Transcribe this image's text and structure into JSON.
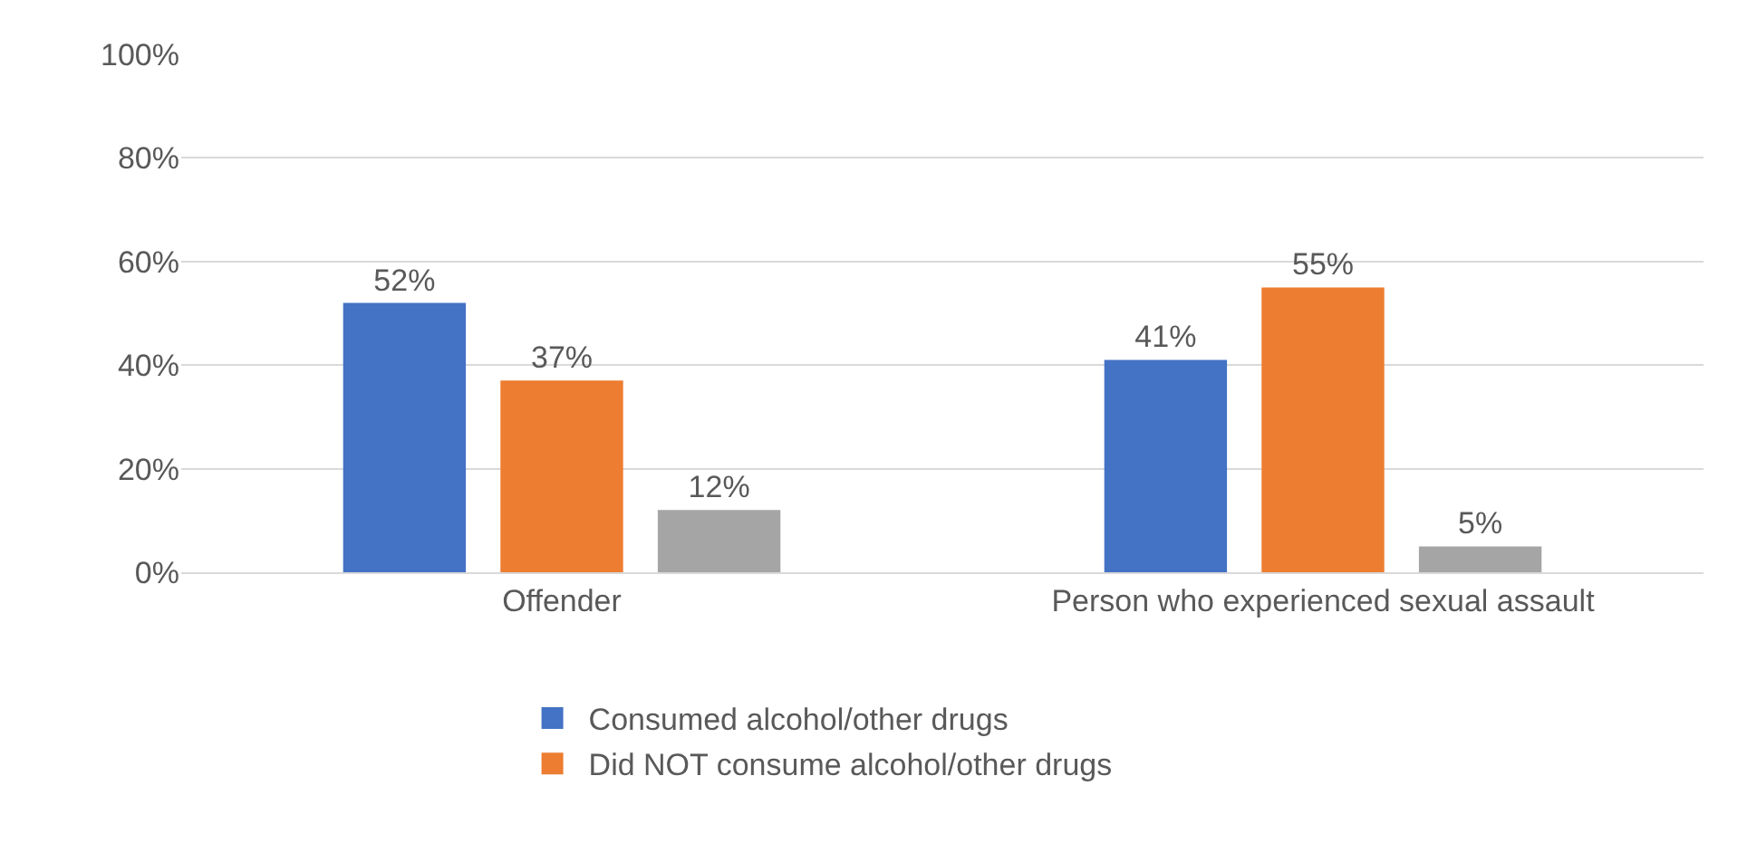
{
  "chart_data": {
    "type": "bar",
    "categories": [
      "Offender",
      "Person who experienced sexual assault"
    ],
    "series": [
      {
        "name": "Consumed alcohol/other drugs",
        "color": "#4472c4",
        "values": [
          52,
          41
        ],
        "value_labels": [
          "52%",
          "41%"
        ]
      },
      {
        "name": "Did NOT consume alcohol/other drugs",
        "color": "#ed7d31",
        "values": [
          37,
          55
        ],
        "value_labels": [
          "37%",
          "55%"
        ]
      },
      {
        "color": "#a5a5a5",
        "values": [
          12,
          5
        ],
        "value_labels": [
          "12%",
          "5%"
        ]
      }
    ],
    "ylim": [
      0,
      100
    ],
    "yticks": [
      {
        "value": 0,
        "label": "0%"
      },
      {
        "value": 20,
        "label": "20%"
      },
      {
        "value": 40,
        "label": "40%"
      },
      {
        "value": 60,
        "label": "60%"
      },
      {
        "value": 80,
        "label": "80%"
      },
      {
        "value": 100,
        "label": "100%"
      }
    ],
    "grid": "y",
    "legend": "bottom"
  }
}
